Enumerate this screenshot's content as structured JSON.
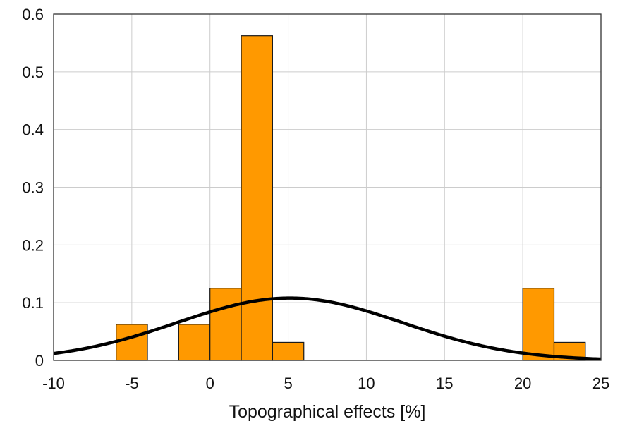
{
  "chart_data": {
    "type": "bar",
    "xlabel": "Topographical effects [%]",
    "ylabel": "",
    "xlim": [
      -10,
      25
    ],
    "ylim": [
      0,
      0.6
    ],
    "grid": true,
    "x_ticks": [
      "-10",
      "-5",
      "0",
      "5",
      "10",
      "15",
      "20",
      "25"
    ],
    "y_ticks": [
      "0",
      "0.1",
      "0.2",
      "0.3",
      "0.4",
      "0.5",
      "0.6"
    ],
    "x_tick_values": [
      -10,
      -5,
      0,
      5,
      10,
      15,
      20,
      25
    ],
    "y_tick_values": [
      0,
      0.1,
      0.2,
      0.3,
      0.4,
      0.5,
      0.6
    ],
    "bins": [
      {
        "x0": -6,
        "x1": -4,
        "value": 0.0625
      },
      {
        "x0": -2,
        "x1": 0,
        "value": 0.0625
      },
      {
        "x0": 0,
        "x1": 2,
        "value": 0.125
      },
      {
        "x0": 2,
        "x1": 4,
        "value": 0.5625
      },
      {
        "x0": 4,
        "x1": 6,
        "value": 0.03125
      },
      {
        "x0": 20,
        "x1": 22,
        "value": 0.125
      },
      {
        "x0": 22,
        "x1": 24,
        "value": 0.03125
      }
    ],
    "fit_curve": {
      "type": "normal",
      "mean": 5.1,
      "sd": 7.2,
      "peak": 0.108
    },
    "colors": {
      "bar_fill": "#FF9900",
      "bar_edge": "#1a1a1a",
      "curve": "#000000",
      "grid": "#cccccc"
    }
  }
}
